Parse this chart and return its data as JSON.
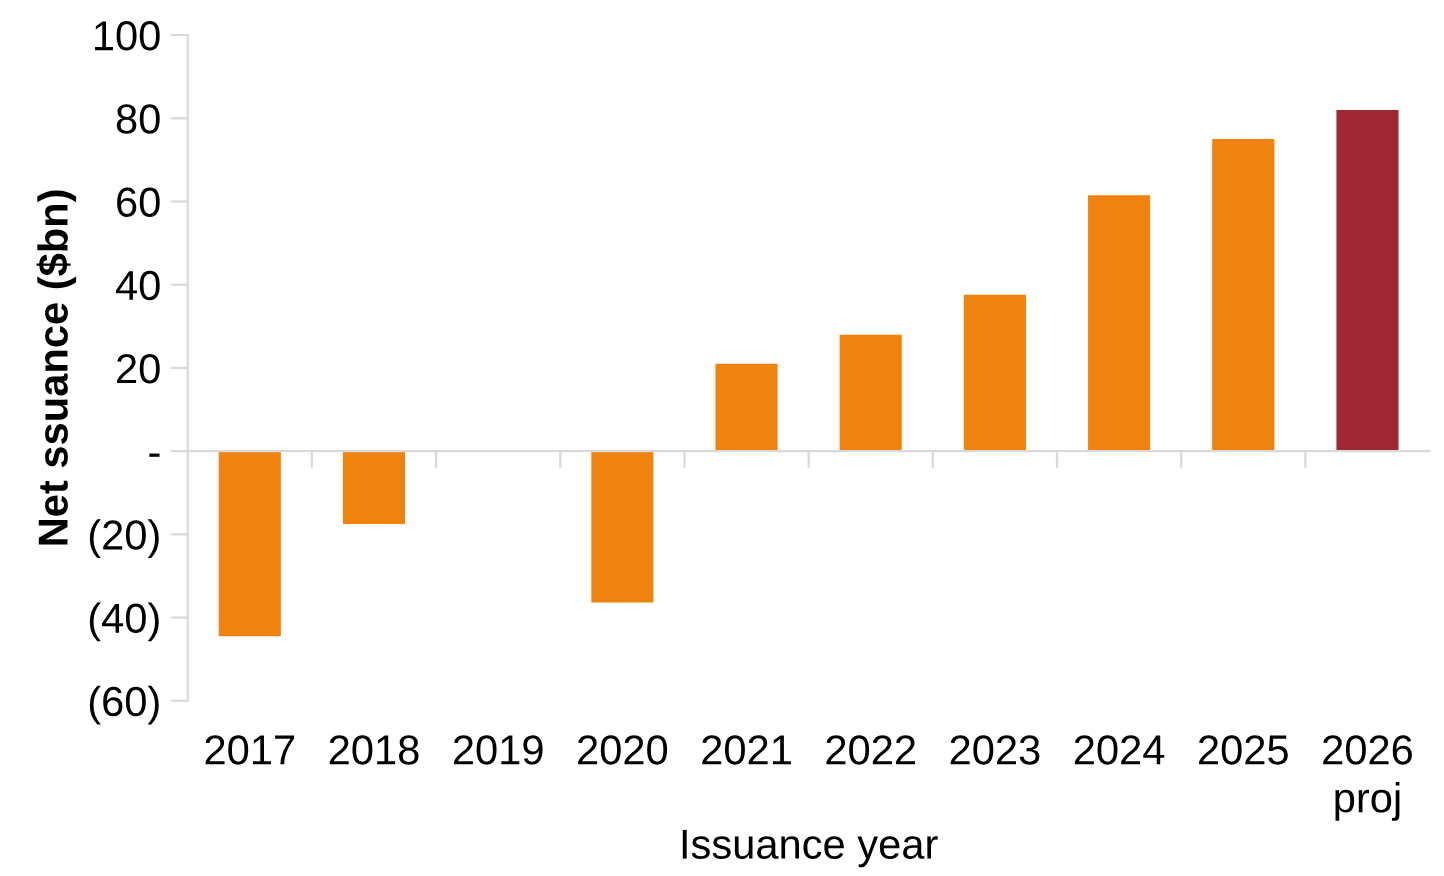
{
  "chart_data": {
    "type": "bar",
    "xlabel": "Issuance year",
    "ylabel": "Net ssuance ($bn)",
    "categories": [
      "2017",
      "2018",
      "2019",
      "2020",
      "2021",
      "2022",
      "2023",
      "2024",
      "2025",
      "2026\nproj"
    ],
    "values": [
      -44.5,
      -17.5,
      0,
      -36.4,
      21,
      28,
      37.6,
      61.5,
      75,
      82
    ],
    "colors": [
      "#f0820f",
      "#f0820f",
      "#f0820f",
      "#f0820f",
      "#f0820f",
      "#f0820f",
      "#f0820f",
      "#f0820f",
      "#f0820f",
      "#a02734"
    ],
    "ylim": [
      -60,
      100
    ],
    "yticks": [
      {
        "value": -60,
        "label": "(60)"
      },
      {
        "value": -40,
        "label": "(40)"
      },
      {
        "value": -20,
        "label": "(20)"
      },
      {
        "value": 0,
        "label": "-"
      },
      20,
      40,
      60,
      80,
      100
    ],
    "legend": false
  }
}
